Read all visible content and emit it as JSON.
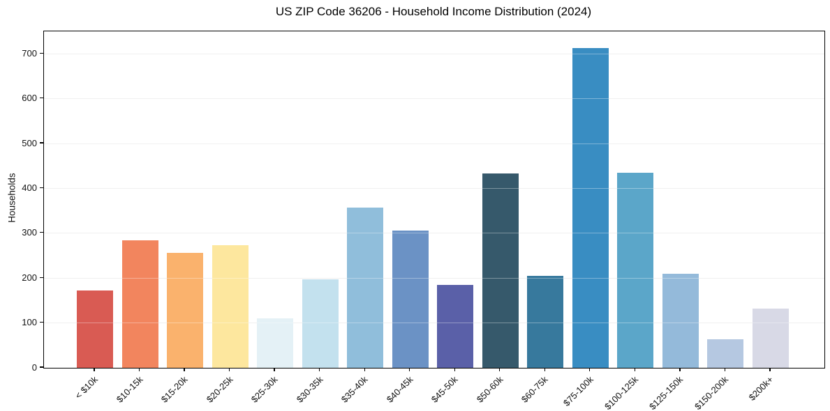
{
  "title": "US ZIP Code 36206 - Household Income Distribution (2024)",
  "y_axis": {
    "label": "Households"
  },
  "chart_data": {
    "type": "bar",
    "title": "US ZIP Code 36206 - Household Income Distribution (2024)",
    "xlabel": "",
    "ylabel": "Households",
    "ylim": [
      0,
      750
    ],
    "yticks": [
      0,
      100,
      200,
      300,
      400,
      500,
      600,
      700
    ],
    "grid": true,
    "legend": false,
    "categories": [
      "< $10k",
      "$10-15k",
      "$15-20k",
      "$20-25k",
      "$25-30k",
      "$30-35k",
      "$35-40k",
      "$40-45k",
      "$45-50k",
      "$50-60k",
      "$60-75k",
      "$75-100k",
      "$100-125k",
      "$125-150k",
      "$150-200k",
      "$200k+"
    ],
    "values": [
      172,
      284,
      256,
      273,
      111,
      198,
      357,
      306,
      185,
      433,
      205,
      712,
      435,
      210,
      64,
      132
    ],
    "bar_colors": [
      "#d95b53",
      "#f2855e",
      "#fab26d",
      "#fde79e",
      "#e4f1f6",
      "#c3e1ee",
      "#90bedb",
      "#6b92c5",
      "#5a60a8",
      "#36596b",
      "#37799d",
      "#398dc2",
      "#5ba6c9",
      "#94bada",
      "#b5c8e1",
      "#d8d9e6"
    ]
  }
}
